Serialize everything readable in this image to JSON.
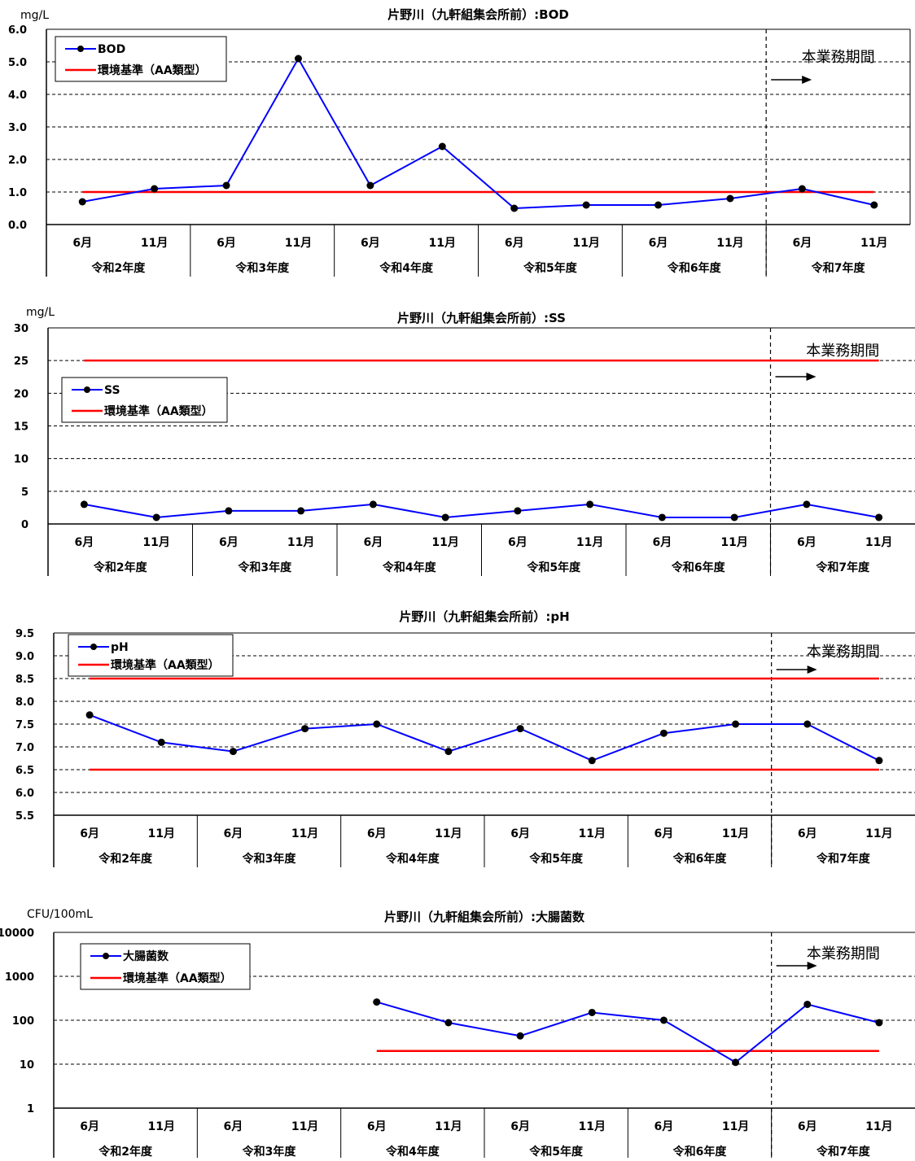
{
  "chart_data": [
    {
      "type": "line",
      "title": "片野川（九軒組集会所前）:BOD",
      "unit": "mg/L",
      "scale": "linear",
      "ylim": [
        0,
        6
      ],
      "ytick_values": [
        0,
        1,
        2,
        3,
        4,
        5,
        6
      ],
      "ytick_labels": [
        "0.0",
        "1.0",
        "2.0",
        "3.0",
        "4.0",
        "5.0",
        "6.0"
      ],
      "categories": [
        "6月",
        "11月",
        "6月",
        "11月",
        "6月",
        "11月",
        "6月",
        "11月",
        "6月",
        "11月",
        "6月",
        "11月"
      ],
      "groups": [
        "令和2年度",
        "令和3年度",
        "令和4年度",
        "令和5年度",
        "令和6年度",
        "令和7年度"
      ],
      "series": [
        {
          "name": "BOD",
          "color": "#0000ff",
          "values": [
            0.7,
            1.1,
            1.2,
            5.1,
            1.2,
            2.4,
            0.5,
            0.6,
            0.6,
            0.8,
            1.1,
            0.6
          ]
        }
      ],
      "standards": [
        {
          "name": "環境基準（AA類型）",
          "color": "#ff0000",
          "value": 1.0,
          "show_legend": true
        }
      ],
      "period_label": "本業務期間",
      "period_start_index": 10,
      "grid": "dashed",
      "legend_position": "top-left"
    },
    {
      "type": "line",
      "title": "片野川（九軒組集会所前）:SS",
      "unit": "mg/L",
      "scale": "linear",
      "ylim": [
        0,
        30
      ],
      "ytick_values": [
        0,
        5,
        10,
        15,
        20,
        25,
        30
      ],
      "ytick_labels": [
        "0",
        "5",
        "10",
        "15",
        "20",
        "25",
        "30"
      ],
      "categories": [
        "6月",
        "11月",
        "6月",
        "11月",
        "6月",
        "11月",
        "6月",
        "11月",
        "6月",
        "11月",
        "6月",
        "11月"
      ],
      "groups": [
        "令和2年度",
        "令和3年度",
        "令和4年度",
        "令和5年度",
        "令和6年度",
        "令和7年度"
      ],
      "series": [
        {
          "name": "SS",
          "color": "#0000ff",
          "values": [
            3,
            1,
            2,
            2,
            3,
            1,
            2,
            3,
            1,
            1,
            3,
            1
          ]
        }
      ],
      "standards": [
        {
          "name": "環境基準（AA類型）",
          "color": "#ff0000",
          "value": 25,
          "show_legend": true
        }
      ],
      "period_label": "本業務期間",
      "period_start_index": 10,
      "grid": "dashed",
      "legend_position": "upper-left"
    },
    {
      "type": "line",
      "title": "片野川（九軒組集会所前）:pH",
      "unit": "",
      "scale": "linear",
      "ylim": [
        5.5,
        9.5
      ],
      "ytick_values": [
        5.5,
        6.0,
        6.5,
        7.0,
        7.5,
        8.0,
        8.5,
        9.0,
        9.5
      ],
      "ytick_labels": [
        "5.5",
        "6.0",
        "6.5",
        "7.0",
        "7.5",
        "8.0",
        "8.5",
        "9.0",
        "9.5"
      ],
      "categories": [
        "6月",
        "11月",
        "6月",
        "11月",
        "6月",
        "11月",
        "6月",
        "11月",
        "6月",
        "11月",
        "6月",
        "11月"
      ],
      "groups": [
        "令和2年度",
        "令和3年度",
        "令和4年度",
        "令和5年度",
        "令和6年度",
        "令和7年度"
      ],
      "series": [
        {
          "name": "pH",
          "color": "#0000ff",
          "values": [
            7.7,
            7.1,
            6.9,
            7.4,
            7.5,
            6.9,
            7.4,
            6.7,
            7.3,
            7.5,
            7.5,
            6.7
          ]
        }
      ],
      "standards": [
        {
          "name": "環境基準（AA類型）",
          "color": "#ff0000",
          "value": 8.5,
          "show_legend": true
        },
        {
          "name": "環境基準（AA類型）",
          "color": "#ff0000",
          "value": 6.5,
          "show_legend": false
        }
      ],
      "period_label": "本業務期間",
      "period_start_index": 10,
      "grid": "dashed",
      "legend_position": "top-left"
    },
    {
      "type": "line",
      "title": "片野川（九軒組集会所前）:大腸菌数",
      "unit": "CFU/100mL",
      "scale": "log",
      "ylim": [
        1,
        10000
      ],
      "ytick_values": [
        1,
        10,
        100,
        1000,
        10000
      ],
      "ytick_labels": [
        "1",
        "10",
        "100",
        "1000",
        "10000"
      ],
      "categories": [
        "6月",
        "11月",
        "6月",
        "11月",
        "6月",
        "11月",
        "6月",
        "11月",
        "6月",
        "11月",
        "6月",
        "11月"
      ],
      "groups": [
        "令和2年度",
        "令和3年度",
        "令和4年度",
        "令和5年度",
        "令和6年度",
        "令和7年度"
      ],
      "series": [
        {
          "name": "大腸菌数",
          "color": "#0000ff",
          "values": [
            null,
            null,
            null,
            null,
            260,
            88,
            44,
            150,
            100,
            11,
            230,
            88
          ]
        }
      ],
      "standards": [
        {
          "name": "環境基準（AA類型）",
          "color": "#ff0000",
          "value": 20,
          "start_index": 4,
          "show_legend": true
        }
      ],
      "period_label": "本業務期間",
      "period_start_index": 10,
      "grid": "dashed",
      "legend_position": "top-left"
    }
  ]
}
